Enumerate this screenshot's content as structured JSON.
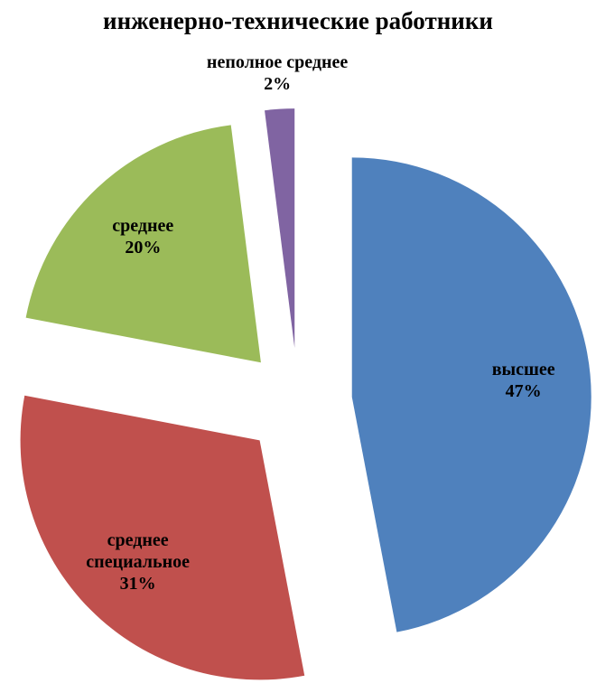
{
  "chart_data": {
    "type": "pie",
    "title": "инженерно-технические работники",
    "categories": [
      "высшее",
      "среднее специальное",
      "среднее",
      "неполное среднее"
    ],
    "values": [
      47,
      31,
      20,
      2
    ],
    "value_labels": [
      "47%",
      "31%",
      "20%",
      "2%"
    ],
    "colors": [
      "#4f81bd",
      "#c0504d",
      "#9bbb59",
      "#8064a2"
    ]
  }
}
